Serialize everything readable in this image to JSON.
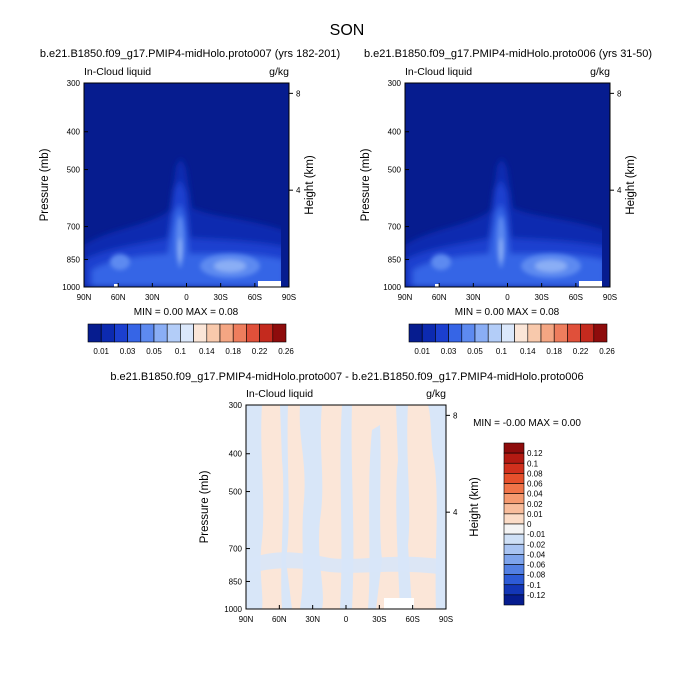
{
  "page": {
    "title": "SON"
  },
  "chart_data": [
    {
      "type": "heatmap",
      "title": "b.e21.B1850.f09_g17.PMIP4-midHolo.proto007 (yrs 182-201)",
      "left_label": "In-Cloud liquid",
      "right_label": "g/kg",
      "ylabel": "Pressure (mb)",
      "y2label": "Height (km)",
      "x_ticks": [
        "90N",
        "60N",
        "30N",
        "0",
        "30S",
        "60S",
        "90S"
      ],
      "y_ticks": [
        "300",
        "400",
        "500",
        "700",
        "850",
        "1000"
      ],
      "y2_ticks": [
        "8",
        "4"
      ],
      "ylim": [
        1000,
        300
      ],
      "stats": "MIN =  0.00  MAX =  0.08",
      "colorbar": {
        "labels": [
          "0.01",
          "0.03",
          "0.05",
          "0.1",
          "0.14",
          "0.18",
          "0.22",
          "0.26"
        ],
        "colors": [
          "#061c8f",
          "#0c2ab0",
          "#1b3fcf",
          "#3665e6",
          "#5d8af0",
          "#8aaef5",
          "#b3cdf8",
          "#dbe8fb",
          "#fbe6d8",
          "#f8c9ac",
          "#f4a683",
          "#ee7d5d",
          "#e0503a",
          "#c42a1e",
          "#8e0c0c"
        ]
      }
    },
    {
      "type": "heatmap",
      "title": "b.e21.B1850.f09_g17.PMIP4-midHolo.proto006 (yrs 31-50)",
      "left_label": "In-Cloud liquid",
      "right_label": "g/kg",
      "ylabel": "Pressure (mb)",
      "y2label": "Height (km)",
      "x_ticks": [
        "90N",
        "60N",
        "30N",
        "0",
        "30S",
        "60S",
        "90S"
      ],
      "y_ticks": [
        "300",
        "400",
        "500",
        "700",
        "850",
        "1000"
      ],
      "y2_ticks": [
        "8",
        "4"
      ],
      "ylim": [
        1000,
        300
      ],
      "stats": "MIN =  0.00  MAX =  0.08",
      "colorbar": {
        "labels": [
          "0.01",
          "0.03",
          "0.05",
          "0.1",
          "0.14",
          "0.18",
          "0.22",
          "0.26"
        ],
        "colors": [
          "#061c8f",
          "#0c2ab0",
          "#1b3fcf",
          "#3665e6",
          "#5d8af0",
          "#8aaef5",
          "#b3cdf8",
          "#dbe8fb",
          "#fbe6d8",
          "#f8c9ac",
          "#f4a683",
          "#ee7d5d",
          "#e0503a",
          "#c42a1e",
          "#8e0c0c"
        ]
      }
    },
    {
      "type": "heatmap",
      "title": "b.e21.B1850.f09_g17.PMIP4-midHolo.proto007 - b.e21.B1850.f09_g17.PMIP4-midHolo.proto006",
      "left_label": "In-Cloud liquid",
      "right_label": "g/kg",
      "ylabel": "Pressure (mb)",
      "y2label": "Height (km)",
      "x_ticks": [
        "90N",
        "60N",
        "30N",
        "0",
        "30S",
        "60S",
        "90S"
      ],
      "y_ticks": [
        "300",
        "400",
        "500",
        "700",
        "850",
        "1000"
      ],
      "y2_ticks": [
        "8",
        "4"
      ],
      "ylim": [
        1000,
        300
      ],
      "stats": "MIN = -0.00  MAX =  0.00",
      "colorbar": {
        "labels": [
          "0.12",
          "0.1",
          "0.08",
          "0.06",
          "0.04",
          "0.02",
          "0.01",
          "0",
          "-0.01",
          "-0.02",
          "-0.04",
          "-0.06",
          "-0.08",
          "-0.1",
          "-0.12"
        ],
        "colors": [
          "#8e0c0c",
          "#b31a12",
          "#d1301d",
          "#e6502c",
          "#f07449",
          "#f59a70",
          "#f8bd9c",
          "#fbdcc7",
          "#f4f4f4",
          "#cfe0f6",
          "#a9c4f2",
          "#7ea4ec",
          "#5380e3",
          "#2d5bd6",
          "#1336b6",
          "#061c8f"
        ]
      }
    }
  ]
}
